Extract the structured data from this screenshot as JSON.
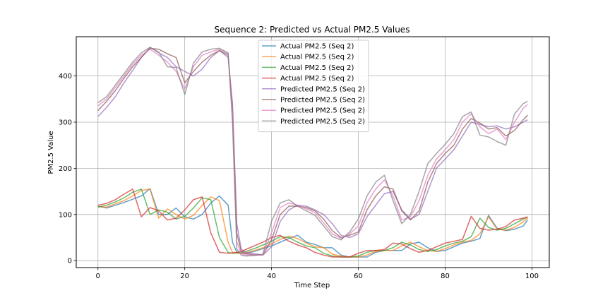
{
  "chart_data": {
    "type": "line",
    "title": "Sequence 2: Predicted vs Actual PM2.5 Values",
    "xlabel": "Time Step",
    "ylabel": "PM2.5 Value",
    "xlim": [
      -5,
      104
    ],
    "ylim": [
      -15,
      485
    ],
    "xticks": [
      0,
      20,
      40,
      60,
      80,
      100
    ],
    "yticks": [
      0,
      100,
      200,
      300,
      400
    ],
    "grid": true,
    "legend_position": "top-center",
    "x": [
      0,
      2,
      4,
      6,
      8,
      10,
      12,
      14,
      16,
      18,
      20,
      22,
      24,
      26,
      28,
      30,
      31,
      32,
      33,
      34,
      36,
      38,
      40,
      42,
      44,
      46,
      48,
      50,
      52,
      54,
      56,
      58,
      60,
      62,
      64,
      66,
      68,
      70,
      72,
      74,
      76,
      78,
      80,
      82,
      84,
      86,
      88,
      90,
      92,
      94,
      96,
      98,
      99
    ],
    "series": [
      {
        "name": "Actual PM2.5 (Seq 2)",
        "color": "#1f77b4",
        "values": [
          118,
          114,
          120,
          126,
          133,
          140,
          156,
          100,
          100,
          114,
          95,
          90,
          100,
          125,
          140,
          120,
          40,
          18,
          16,
          16,
          20,
          26,
          32,
          40,
          48,
          55,
          40,
          35,
          28,
          28,
          12,
          8,
          8,
          8,
          18,
          22,
          22,
          22,
          36,
          40,
          28,
          20,
          22,
          30,
          38,
          42,
          48,
          98,
          70,
          65,
          68,
          75,
          88
        ]
      },
      {
        "name": "Actual PM2.5 (Seq 2)",
        "color": "#ff7f0e",
        "values": [
          117,
          116,
          123,
          130,
          140,
          152,
          155,
          92,
          112,
          100,
          90,
          98,
          120,
          138,
          130,
          40,
          18,
          16,
          16,
          17,
          22,
          28,
          36,
          46,
          53,
          48,
          38,
          30,
          28,
          14,
          10,
          8,
          8,
          12,
          20,
          22,
          22,
          32,
          40,
          30,
          22,
          20,
          26,
          34,
          40,
          44,
          58,
          95,
          68,
          66,
          72,
          84,
          92
        ]
      },
      {
        "name": "Actual PM2.5 (Seq 2)",
        "color": "#2ca02c",
        "values": [
          116,
          120,
          127,
          136,
          148,
          155,
          100,
          110,
          105,
          90,
          96,
          114,
          136,
          132,
          50,
          18,
          16,
          17,
          18,
          20,
          26,
          34,
          42,
          52,
          50,
          40,
          32,
          28,
          16,
          10,
          8,
          8,
          10,
          18,
          22,
          22,
          28,
          40,
          34,
          24,
          20,
          24,
          32,
          38,
          42,
          52,
          92,
          72,
          66,
          70,
          80,
          90,
          94
        ]
      },
      {
        "name": "Actual PM2.5 (Seq 2)",
        "color": "#d62728",
        "values": [
          120,
          124,
          132,
          144,
          155,
          95,
          115,
          108,
          88,
          92,
          110,
          132,
          138,
          60,
          18,
          16,
          17,
          18,
          20,
          24,
          32,
          40,
          50,
          55,
          42,
          34,
          28,
          18,
          12,
          8,
          8,
          8,
          16,
          22,
          22,
          24,
          38,
          36,
          26,
          18,
          22,
          30,
          38,
          42,
          46,
          96,
          70,
          66,
          68,
          74,
          88,
          92,
          95
        ]
      },
      {
        "name": "Predicted PM2.5 (Seq 2)",
        "color": "#9467bd",
        "values": [
          312,
          332,
          355,
          385,
          412,
          440,
          462,
          450,
          440,
          420,
          410,
          400,
          415,
          440,
          455,
          440,
          340,
          80,
          25,
          18,
          15,
          12,
          30,
          85,
          110,
          120,
          118,
          110,
          100,
          80,
          55,
          50,
          58,
          95,
          120,
          145,
          150,
          110,
          90,
          100,
          150,
          200,
          220,
          240,
          270,
          300,
          295,
          290,
          292,
          285,
          290,
          300,
          305
        ]
      },
      {
        "name": "Predicted PM2.5 (Seq 2)",
        "color": "#8c564b",
        "values": [
          325,
          345,
          368,
          395,
          420,
          440,
          460,
          458,
          448,
          440,
          385,
          410,
          430,
          445,
          455,
          445,
          330,
          60,
          20,
          15,
          13,
          12,
          45,
          100,
          118,
          118,
          115,
          108,
          90,
          65,
          50,
          55,
          62,
          110,
          140,
          160,
          155,
          108,
          88,
          108,
          170,
          210,
          232,
          250,
          285,
          308,
          298,
          285,
          288,
          270,
          282,
          305,
          315
        ]
      },
      {
        "name": "Predicted PM2.5 (Seq 2)",
        "color": "#e377c2",
        "values": [
          335,
          350,
          375,
          400,
          425,
          445,
          458,
          445,
          430,
          410,
          372,
          420,
          445,
          452,
          458,
          448,
          320,
          40,
          15,
          12,
          12,
          12,
          60,
          115,
          125,
          120,
          112,
          104,
          82,
          58,
          48,
          58,
          75,
          125,
          155,
          175,
          140,
          88,
          95,
          130,
          185,
          220,
          240,
          262,
          300,
          318,
          290,
          275,
          285,
          262,
          300,
          330,
          338
        ]
      },
      {
        "name": "Predicted PM2.5 (Seq 2)",
        "color": "#7f7f7f",
        "values": [
          342,
          355,
          380,
          405,
          430,
          450,
          462,
          452,
          420,
          418,
          360,
          428,
          452,
          458,
          460,
          450,
          300,
          25,
          12,
          10,
          11,
          14,
          85,
          125,
          132,
          118,
          108,
          98,
          75,
          52,
          45,
          62,
          90,
          140,
          170,
          185,
          130,
          80,
          100,
          150,
          210,
          232,
          252,
          275,
          312,
          322,
          272,
          268,
          258,
          250,
          318,
          340,
          345
        ]
      }
    ]
  }
}
